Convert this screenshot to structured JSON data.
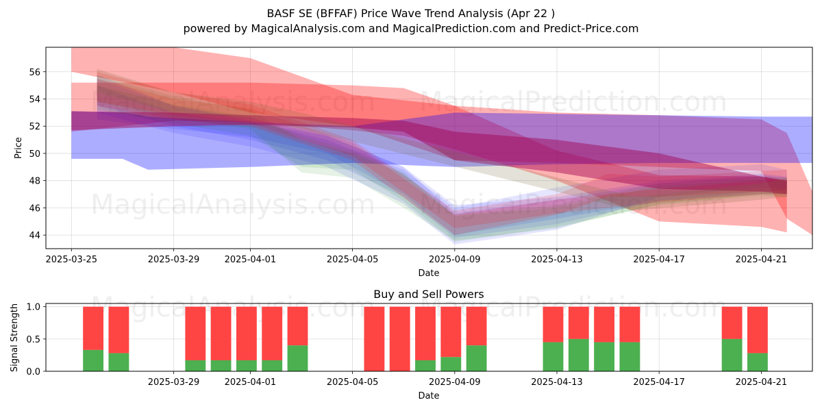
{
  "chart_data": [
    {
      "type": "area",
      "title": "BASF SE (BFFAF) Price Wave Trend Analysis (Apr 22 )",
      "subtitle": "powered by MagicalAnalysis.com and MagicalPrediction.com and Predict-Price.com",
      "xlabel": "Date",
      "ylabel": "Price",
      "xlim": [
        "2025-03-24",
        "2025-04-23"
      ],
      "ylim": [
        43.0,
        57.8
      ],
      "x_ticks": [
        "2025-03-25",
        "2025-03-29",
        "2025-04-01",
        "2025-04-05",
        "2025-04-09",
        "2025-04-13",
        "2025-04-17",
        "2025-04-21"
      ],
      "y_ticks": [
        44,
        46,
        48,
        50,
        52,
        54,
        56
      ],
      "grid": true,
      "watermarks": [
        "MagicalAnalysis.com",
        "MagicalPrediction.com"
      ],
      "bands": [
        {
          "color": "#ff0000",
          "opacity": 0.3,
          "points": [
            [
              "2025-03-25",
              56.0,
              58.5
            ],
            [
              "2025-03-29",
              54.5,
              57.8
            ],
            [
              "2025-04-01",
              53.0,
              57.0
            ],
            [
              "2025-04-05",
              52.0,
              54.3
            ],
            [
              "2025-04-09",
              49.5,
              53.5
            ],
            [
              "2025-04-13",
              49.3,
              53.0
            ],
            [
              "2025-04-17",
              49.0,
              52.8
            ],
            [
              "2025-04-21",
              48.7,
              52.5
            ],
            [
              "2025-04-22",
              45.2,
              51.5
            ],
            [
              "2025-04-23",
              44.0,
              47.2
            ]
          ]
        },
        {
          "color": "#ff0000",
          "opacity": 0.3,
          "points": [
            [
              "2025-03-25",
              51.6,
              55.2
            ],
            [
              "2025-03-29",
              52.4,
              55.2
            ],
            [
              "2025-04-01",
              52.3,
              55.2
            ],
            [
              "2025-04-05",
              51.7,
              55.0
            ],
            [
              "2025-04-07",
              51.3,
              54.8
            ],
            [
              "2025-04-09",
              50.3,
              53.5
            ],
            [
              "2025-04-13",
              48.0,
              50.2
            ],
            [
              "2025-04-17",
              45.0,
              48.4
            ],
            [
              "2025-04-21",
              44.6,
              48.3
            ],
            [
              "2025-04-22",
              44.2,
              48.0
            ]
          ]
        },
        {
          "color": "#0000ff",
          "opacity": 0.32,
          "points": [
            [
              "2025-03-25",
              49.6,
              53.1
            ],
            [
              "2025-03-27",
              49.6,
              53.0
            ],
            [
              "2025-03-28",
              48.8,
              52.7
            ],
            [
              "2025-04-01",
              49.0,
              52.3
            ],
            [
              "2025-04-05",
              49.3,
              52.0
            ],
            [
              "2025-04-09",
              49.0,
              53.0
            ],
            [
              "2025-04-13",
              49.2,
              52.9
            ],
            [
              "2025-04-17",
              49.3,
              52.8
            ],
            [
              "2025-04-21",
              49.3,
              52.7
            ],
            [
              "2025-04-23",
              49.3,
              52.7
            ]
          ]
        },
        {
          "color": "#0000ff",
          "opacity": 0.1,
          "points": [
            [
              "2025-03-26",
              53.0,
              55.8
            ],
            [
              "2025-03-29",
              51.5,
              53.5
            ],
            [
              "2025-04-01",
              50.5,
              52.4
            ],
            [
              "2025-04-04",
              49.0,
              51.0
            ],
            [
              "2025-04-07",
              46.3,
              48.8
            ],
            [
              "2025-04-09",
              43.3,
              46.0
            ],
            [
              "2025-04-13",
              44.4,
              47.5
            ],
            [
              "2025-04-17",
              46.8,
              48.8
            ],
            [
              "2025-04-21",
              47.5,
              49.2
            ],
            [
              "2025-04-22",
              47.4,
              48.8
            ]
          ]
        },
        {
          "color": "#0000ff",
          "opacity": 0.1,
          "points": [
            [
              "2025-03-26",
              53.5,
              55.5
            ],
            [
              "2025-03-29",
              52.0,
              53.5
            ],
            [
              "2025-04-01",
              51.0,
              52.6
            ],
            [
              "2025-04-04",
              49.5,
              51.3
            ],
            [
              "2025-04-07",
              46.8,
              49.0
            ],
            [
              "2025-04-09",
              43.8,
              46.2
            ],
            [
              "2025-04-13",
              44.8,
              46.8
            ],
            [
              "2025-04-17",
              46.5,
              48.0
            ],
            [
              "2025-04-21",
              47.0,
              48.5
            ],
            [
              "2025-04-22",
              47.0,
              48.3
            ]
          ]
        },
        {
          "color": "#0000ff",
          "opacity": 0.1,
          "points": [
            [
              "2025-03-26",
              52.5,
              55.0
            ],
            [
              "2025-03-29",
              51.8,
              53.0
            ],
            [
              "2025-04-01",
              51.2,
              52.3
            ],
            [
              "2025-04-04",
              50.0,
              51.3
            ],
            [
              "2025-04-07",
              47.0,
              49.0
            ],
            [
              "2025-04-09",
              44.0,
              45.6
            ],
            [
              "2025-04-13",
              45.2,
              46.6
            ],
            [
              "2025-04-17",
              46.5,
              47.8
            ],
            [
              "2025-04-21",
              47.2,
              48.4
            ],
            [
              "2025-04-22",
              47.3,
              48.2
            ]
          ]
        },
        {
          "color": "#008000",
          "opacity": 0.1,
          "points": [
            [
              "2025-03-26",
              53.8,
              55.7
            ],
            [
              "2025-03-29",
              52.6,
              54.2
            ],
            [
              "2025-04-01",
              51.8,
              53.2
            ],
            [
              "2025-04-03",
              48.6,
              51.0
            ],
            [
              "2025-04-05",
              48.2,
              50.0
            ],
            [
              "2025-04-07",
              46.0,
              48.5
            ],
            [
              "2025-04-09",
              43.6,
              45.5
            ],
            [
              "2025-04-13",
              44.5,
              46.2
            ],
            [
              "2025-04-17",
              46.3,
              47.8
            ],
            [
              "2025-04-21",
              47.0,
              48.3
            ],
            [
              "2025-04-22",
              47.0,
              48.2
            ]
          ]
        },
        {
          "color": "#008000",
          "opacity": 0.1,
          "points": [
            [
              "2025-03-26",
              53.2,
              55.0
            ],
            [
              "2025-03-29",
              52.2,
              53.6
            ],
            [
              "2025-04-01",
              51.3,
              52.7
            ],
            [
              "2025-04-03",
              49.0,
              51.3
            ],
            [
              "2025-04-05",
              48.8,
              50.2
            ],
            [
              "2025-04-07",
              46.5,
              48.6
            ],
            [
              "2025-04-09",
              43.5,
              45.4
            ],
            [
              "2025-04-13",
              44.6,
              46.0
            ],
            [
              "2025-04-17",
              46.2,
              47.6
            ],
            [
              "2025-04-21",
              46.9,
              48.1
            ],
            [
              "2025-04-22",
              46.8,
              48.0
            ]
          ]
        },
        {
          "color": "#ff0000",
          "opacity": 0.15,
          "points": [
            [
              "2025-03-26",
              53.5,
              56.0
            ],
            [
              "2025-03-29",
              52.5,
              54.5
            ],
            [
              "2025-04-01",
              52.0,
              53.6
            ],
            [
              "2025-04-05",
              49.5,
              51.0
            ],
            [
              "2025-04-09",
              44.0,
              45.8
            ],
            [
              "2025-04-13",
              45.5,
              47.0
            ],
            [
              "2025-04-15",
              46.8,
              48.5
            ],
            [
              "2025-04-17",
              46.8,
              48.3
            ],
            [
              "2025-04-21",
              47.2,
              48.7
            ],
            [
              "2025-04-22",
              47.2,
              48.8
            ]
          ]
        },
        {
          "color": "#ff0000",
          "opacity": 0.15,
          "points": [
            [
              "2025-03-26",
              53.8,
              55.5
            ],
            [
              "2025-03-29",
              52.8,
              54.0
            ],
            [
              "2025-04-01",
              52.2,
              53.3
            ],
            [
              "2025-04-05",
              49.8,
              50.8
            ],
            [
              "2025-04-09",
              44.5,
              45.5
            ],
            [
              "2025-04-13",
              45.6,
              46.6
            ],
            [
              "2025-04-17",
              46.4,
              47.4
            ],
            [
              "2025-04-21",
              47.0,
              48.0
            ],
            [
              "2025-04-22",
              47.0,
              48.1
            ]
          ]
        },
        {
          "color": "#a00050",
          "opacity": 0.45,
          "points": [
            [
              "2025-03-25",
              51.7,
              53.1
            ],
            [
              "2025-03-29",
              52.0,
              53.0
            ],
            [
              "2025-04-01",
              52.1,
              52.8
            ],
            [
              "2025-04-05",
              51.9,
              52.6
            ],
            [
              "2025-04-07",
              51.6,
              52.4
            ],
            [
              "2025-04-09",
              49.5,
              51.6
            ],
            [
              "2025-04-13",
              48.6,
              51.0
            ],
            [
              "2025-04-17",
              47.4,
              50.0
            ],
            [
              "2025-04-21",
              47.2,
              48.3
            ],
            [
              "2025-04-22",
              47.0,
              48.0
            ]
          ]
        },
        {
          "color": "#7a6a3a",
          "opacity": 0.2,
          "points": [
            [
              "2025-03-26",
              54.5,
              56.2
            ],
            [
              "2025-03-29",
              53.0,
              54.5
            ],
            [
              "2025-04-01",
              52.6,
              53.8
            ],
            [
              "2025-04-03",
              51.8,
              53.0
            ],
            [
              "2025-04-16",
              45.8,
              46.8
            ],
            [
              "2025-04-21",
              46.6,
              47.8
            ],
            [
              "2025-04-22",
              46.8,
              48.2
            ]
          ]
        }
      ]
    },
    {
      "type": "bar",
      "title": "Buy and Sell Powers",
      "xlabel": "Date",
      "ylabel": "Signal Strength",
      "ylim": [
        0,
        1.05
      ],
      "y_ticks": [
        "0.0",
        "0.5",
        "1.0"
      ],
      "x_ticks": [
        "2025-03-29",
        "2025-04-01",
        "2025-04-05",
        "2025-04-09",
        "2025-04-13",
        "2025-04-17",
        "2025-04-21"
      ],
      "series": [
        {
          "name": "",
          "color": "#4caf50"
        },
        {
          "name": "",
          "color": "#ff4444"
        }
      ],
      "bars": [
        {
          "date": "2025-03-26",
          "buy": 0.33
        },
        {
          "date": "2025-03-27",
          "buy": 0.28
        },
        {
          "date": "2025-03-30",
          "buy": 0.17
        },
        {
          "date": "2025-03-31",
          "buy": 0.17
        },
        {
          "date": "2025-04-01",
          "buy": 0.17
        },
        {
          "date": "2025-04-02",
          "buy": 0.17
        },
        {
          "date": "2025-04-03",
          "buy": 0.4
        },
        {
          "date": "2025-04-06",
          "buy": 0.0
        },
        {
          "date": "2025-04-07",
          "buy": 0.0
        },
        {
          "date": "2025-04-08",
          "buy": 0.17
        },
        {
          "date": "2025-04-09",
          "buy": 0.22
        },
        {
          "date": "2025-04-10",
          "buy": 0.4
        },
        {
          "date": "2025-04-13",
          "buy": 0.45
        },
        {
          "date": "2025-04-14",
          "buy": 0.5
        },
        {
          "date": "2025-04-15",
          "buy": 0.45
        },
        {
          "date": "2025-04-16",
          "buy": 0.45
        },
        {
          "date": "2025-04-20",
          "buy": 0.5
        },
        {
          "date": "2025-04-21",
          "buy": 0.28
        }
      ]
    }
  ]
}
